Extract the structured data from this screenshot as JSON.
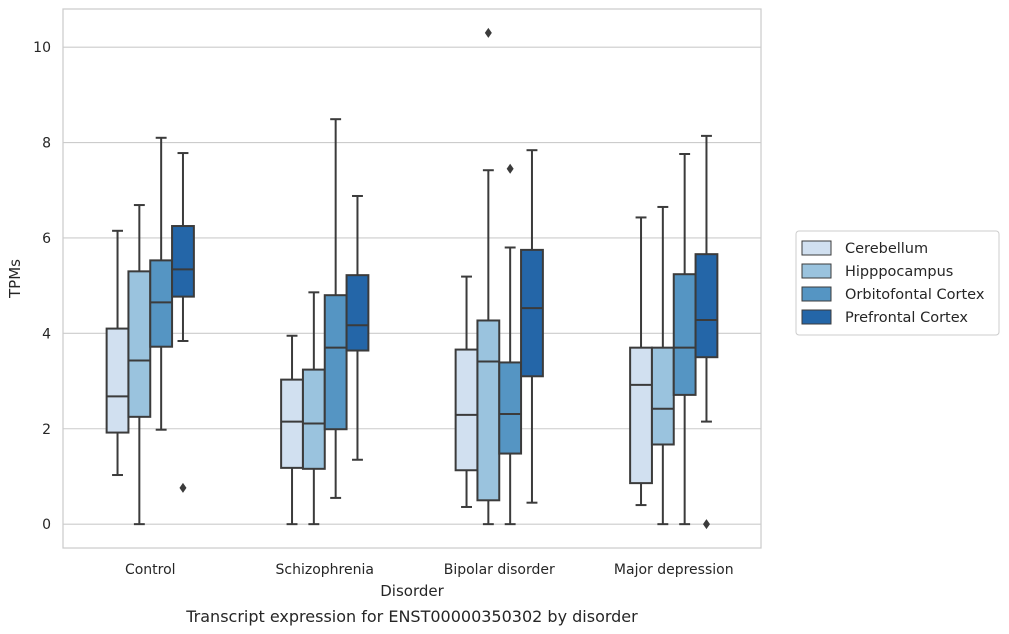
{
  "caption": "Transcript expression for ENST00000350302 by disorder",
  "chart_data": {
    "type": "box",
    "xlabel": "Disorder",
    "ylabel": "TPMs",
    "ylim": [
      -0.5,
      10.8
    ],
    "yticks": [
      0,
      2,
      4,
      6,
      8,
      10
    ],
    "grid": "horizontal",
    "legend_position": "right",
    "categories": [
      "Control",
      "Schizophrenia",
      "Bipolar disorder",
      "Major depression"
    ],
    "series": [
      {
        "name": "Cerebellum",
        "color": "#d1e0f0",
        "boxes": [
          {
            "whislo": 1.03,
            "q1": 1.92,
            "med": 2.68,
            "q3": 4.1,
            "whishi": 6.15,
            "fliers": []
          },
          {
            "whislo": 0.0,
            "q1": 1.18,
            "med": 2.15,
            "q3": 3.03,
            "whishi": 3.95,
            "fliers": []
          },
          {
            "whislo": 0.36,
            "q1": 1.13,
            "med": 2.29,
            "q3": 3.66,
            "whishi": 5.19,
            "fliers": []
          },
          {
            "whislo": 0.4,
            "q1": 0.86,
            "med": 2.92,
            "q3": 3.7,
            "whishi": 6.43,
            "fliers": []
          }
        ]
      },
      {
        "name": "Hipppocampus",
        "color": "#9ac3de",
        "boxes": [
          {
            "whislo": 0.0,
            "q1": 2.25,
            "med": 3.43,
            "q3": 5.3,
            "whishi": 6.69,
            "fliers": []
          },
          {
            "whislo": 0.0,
            "q1": 1.16,
            "med": 2.11,
            "q3": 3.24,
            "whishi": 4.86,
            "fliers": []
          },
          {
            "whislo": 0.0,
            "q1": 0.5,
            "med": 3.41,
            "q3": 4.27,
            "whishi": 7.42,
            "fliers": [
              10.3
            ]
          },
          {
            "whislo": 0.0,
            "q1": 1.67,
            "med": 2.42,
            "q3": 3.7,
            "whishi": 6.65,
            "fliers": []
          }
        ]
      },
      {
        "name": "Orbitofontal Cortex",
        "color": "#5595c3",
        "boxes": [
          {
            "whislo": 1.98,
            "q1": 3.72,
            "med": 4.65,
            "q3": 5.53,
            "whishi": 8.1,
            "fliers": []
          },
          {
            "whislo": 0.55,
            "q1": 1.99,
            "med": 3.7,
            "q3": 4.8,
            "whishi": 8.49,
            "fliers": []
          },
          {
            "whislo": 0.0,
            "q1": 1.48,
            "med": 2.31,
            "q3": 3.39,
            "whishi": 5.8,
            "fliers": [
              7.45
            ]
          },
          {
            "whislo": 0.0,
            "q1": 2.71,
            "med": 3.7,
            "q3": 5.24,
            "whishi": 7.76,
            "fliers": []
          }
        ]
      },
      {
        "name": "Prefrontal Cortex",
        "color": "#2466a8",
        "boxes": [
          {
            "whislo": 3.84,
            "q1": 4.77,
            "med": 5.34,
            "q3": 6.25,
            "whishi": 7.78,
            "fliers": [
              0.76
            ]
          },
          {
            "whislo": 1.35,
            "q1": 3.64,
            "med": 4.17,
            "q3": 5.22,
            "whishi": 6.88,
            "fliers": []
          },
          {
            "whislo": 0.45,
            "q1": 3.1,
            "med": 4.53,
            "q3": 5.75,
            "whishi": 7.84,
            "fliers": []
          },
          {
            "whislo": 2.15,
            "q1": 3.5,
            "med": 4.28,
            "q3": 5.66,
            "whishi": 8.14,
            "fliers": [
              0.0
            ]
          }
        ]
      }
    ]
  }
}
